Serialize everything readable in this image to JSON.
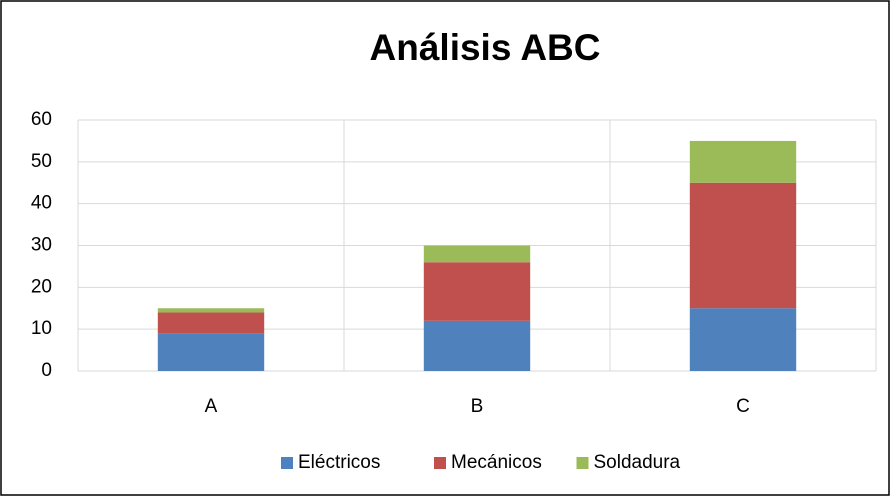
{
  "chart_data": {
    "type": "bar",
    "stacked": true,
    "title": "Análisis ABC",
    "categories": [
      "A",
      "B",
      "C"
    ],
    "series": [
      {
        "name": "Eléctricos",
        "color": "#4f81bd",
        "values": [
          9,
          12,
          15
        ]
      },
      {
        "name": "Mecánicos",
        "color": "#c0504d",
        "values": [
          5,
          14,
          30
        ]
      },
      {
        "name": "Soldadura",
        "color": "#9bbb59",
        "values": [
          1,
          4,
          10
        ]
      }
    ],
    "ylim": [
      0,
      60
    ],
    "yticks": [
      0,
      10,
      20,
      30,
      40,
      50,
      60
    ],
    "grid": true,
    "legend": "bottom"
  }
}
